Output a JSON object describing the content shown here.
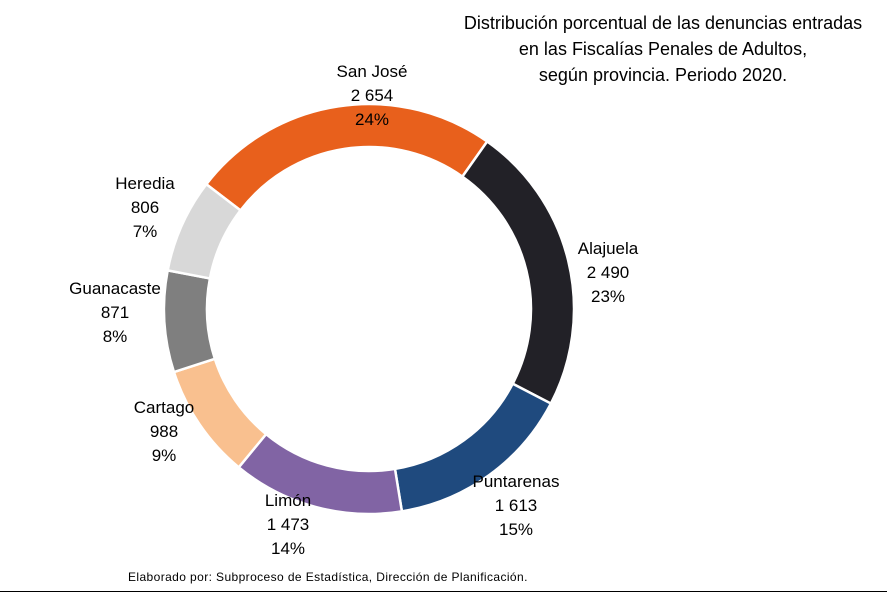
{
  "chart_data": {
    "type": "pie",
    "title_lines": [
      "Distribución porcentual de las denuncias entradas",
      "en las Fiscalías Penales de Adultos,",
      "según provincia. Periodo 2020."
    ],
    "slices": [
      {
        "name": "San José",
        "value_label": "2 654",
        "value": 2654,
        "pct_label": "24%",
        "color": "#e8601c"
      },
      {
        "name": "Alajuela",
        "value_label": "2 490",
        "value": 2490,
        "pct_label": "23%",
        "color": "#222127"
      },
      {
        "name": "Puntarenas",
        "value_label": "1 613",
        "value": 1613,
        "pct_label": "15%",
        "color": "#1f4a7e"
      },
      {
        "name": "Limón",
        "value_label": "1 473",
        "value": 1473,
        "pct_label": "14%",
        "color": "#8164a4"
      },
      {
        "name": "Cartago",
        "value_label": "988",
        "value": 988,
        "pct_label": "9%",
        "color": "#f9c08f"
      },
      {
        "name": "Guanacaste",
        "value_label": "871",
        "value": 871,
        "pct_label": "8%",
        "color": "#7f7f7f"
      },
      {
        "name": "Heredia",
        "value_label": "806",
        "value": 806,
        "pct_label": "7%",
        "color": "#d8d8d8"
      }
    ],
    "donut": true
  },
  "footer": {
    "source": "Elaborado por: Subproceso de Estadística, Dirección de Planificación."
  }
}
